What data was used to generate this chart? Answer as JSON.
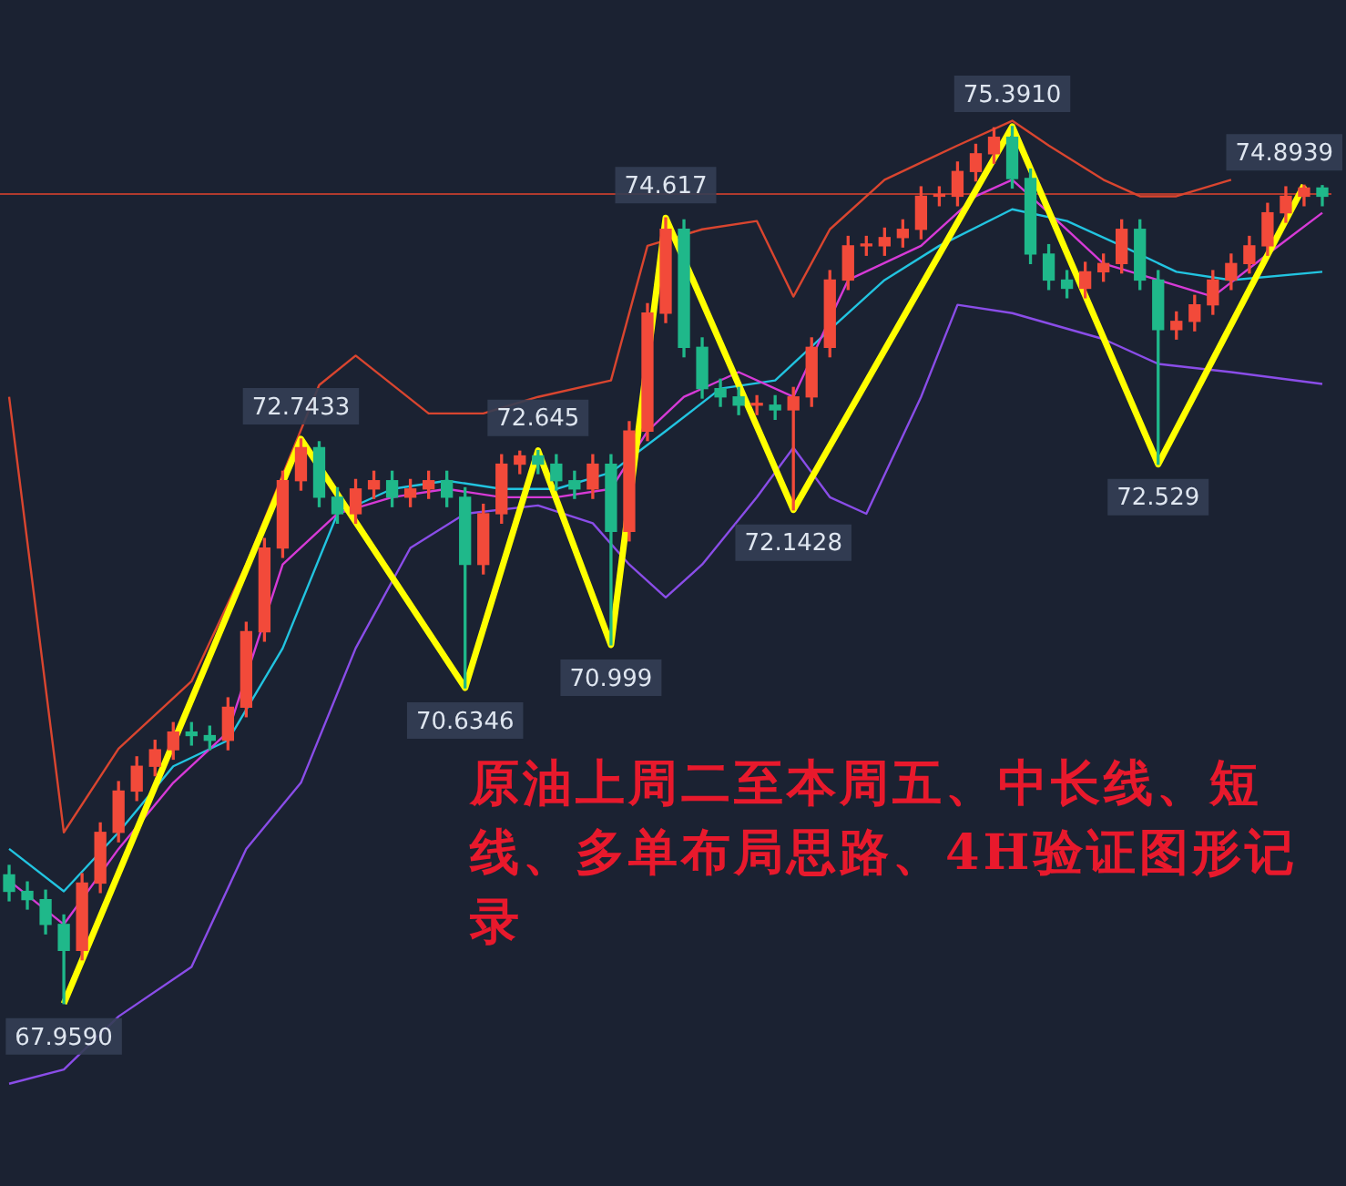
{
  "chart_data": {
    "type": "candlestick",
    "tick_labels": false,
    "categories": [
      null,
      null,
      null,
      null,
      null,
      null,
      null,
      null,
      null,
      null,
      null,
      null,
      null,
      null,
      null,
      null,
      null,
      null,
      null,
      null,
      null,
      null,
      null,
      null,
      null,
      null,
      null,
      null,
      null,
      null,
      null,
      null,
      null,
      null,
      null,
      null,
      null,
      null,
      null,
      null,
      null,
      null,
      null,
      null,
      null,
      null,
      null,
      null,
      null,
      null,
      null,
      null,
      null,
      null,
      null,
      null,
      null,
      null,
      null,
      null,
      null,
      null,
      null,
      null,
      null,
      null,
      null,
      null,
      null,
      null,
      null,
      null,
      null
    ],
    "ohlc": [
      [
        69.05,
        69.13,
        68.83,
        68.91
      ],
      [
        68.91,
        68.99,
        68.76,
        68.84
      ],
      [
        68.84,
        68.92,
        68.55,
        68.63
      ],
      [
        68.63,
        68.71,
        67.959,
        68.41
      ],
      [
        68.41,
        69.06,
        68.33,
        68.98
      ],
      [
        68.98,
        69.49,
        68.9,
        69.41
      ],
      [
        69.41,
        69.84,
        69.33,
        69.76
      ],
      [
        69.76,
        70.05,
        69.68,
        69.97
      ],
      [
        69.97,
        70.19,
        69.89,
        70.11
      ],
      [
        70.11,
        70.34,
        70.03,
        70.26
      ],
      [
        70.26,
        70.34,
        70.15,
        70.23
      ],
      [
        70.23,
        70.31,
        70.11,
        70.19
      ],
      [
        70.19,
        70.55,
        70.11,
        70.47
      ],
      [
        70.47,
        71.19,
        70.39,
        71.11
      ],
      [
        71.11,
        71.9,
        71.03,
        71.82
      ],
      [
        71.82,
        72.47,
        71.74,
        72.39
      ],
      [
        72.39,
        72.7433,
        72.31,
        72.67
      ],
      [
        72.67,
        72.72,
        72.17,
        72.25
      ],
      [
        72.25,
        72.33,
        72.03,
        72.11
      ],
      [
        72.11,
        72.4,
        72.03,
        72.32
      ],
      [
        72.32,
        72.47,
        72.24,
        72.39
      ],
      [
        72.39,
        72.47,
        72.17,
        72.25
      ],
      [
        72.25,
        72.4,
        72.17,
        72.32
      ],
      [
        72.32,
        72.47,
        72.24,
        72.39
      ],
      [
        72.39,
        72.47,
        72.17,
        72.25
      ],
      [
        72.25,
        72.33,
        70.6346,
        71.68
      ],
      [
        71.68,
        72.19,
        71.6,
        72.11
      ],
      [
        72.11,
        72.61,
        72.03,
        72.53
      ],
      [
        72.53,
        72.64,
        72.45,
        72.6
      ],
      [
        72.6,
        72.645,
        72.45,
        72.53
      ],
      [
        72.53,
        72.61,
        72.31,
        72.39
      ],
      [
        72.39,
        72.47,
        72.24,
        72.32
      ],
      [
        72.32,
        72.61,
        72.24,
        72.53
      ],
      [
        72.53,
        72.61,
        70.999,
        71.96
      ],
      [
        71.96,
        72.89,
        71.88,
        72.81
      ],
      [
        72.81,
        73.89,
        72.73,
        73.81
      ],
      [
        73.81,
        74.617,
        73.73,
        74.52
      ],
      [
        74.52,
        74.6,
        73.44,
        73.52
      ],
      [
        73.52,
        73.6,
        73.09,
        73.17
      ],
      [
        73.17,
        73.25,
        73.02,
        73.1
      ],
      [
        73.1,
        73.18,
        72.95,
        73.03
      ],
      [
        73.03,
        73.11,
        72.95,
        73.03
      ],
      [
        73.03,
        73.11,
        72.91,
        72.99
      ],
      [
        72.99,
        73.18,
        72.1428,
        73.1
      ],
      [
        73.1,
        73.6,
        73.02,
        73.52
      ],
      [
        73.52,
        74.17,
        73.44,
        74.09
      ],
      [
        74.09,
        74.46,
        74.01,
        74.38
      ],
      [
        74.38,
        74.46,
        74.3,
        74.38
      ],
      [
        74.38,
        74.53,
        74.3,
        74.45
      ],
      [
        74.45,
        74.6,
        74.37,
        74.52
      ],
      [
        74.52,
        74.88,
        74.44,
        74.8
      ],
      [
        74.8,
        74.88,
        74.72,
        74.8
      ],
      [
        74.8,
        75.09,
        74.72,
        75.01
      ],
      [
        75.01,
        75.24,
        74.93,
        75.16
      ],
      [
        75.16,
        75.38,
        75.08,
        75.3
      ],
      [
        75.3,
        75.391,
        74.87,
        74.95
      ],
      [
        74.95,
        75.03,
        74.23,
        74.31
      ],
      [
        74.31,
        74.39,
        74.01,
        74.09
      ],
      [
        74.09,
        74.17,
        73.94,
        74.02
      ],
      [
        74.02,
        74.24,
        73.94,
        74.16
      ],
      [
        74.16,
        74.31,
        74.08,
        74.23
      ],
      [
        74.23,
        74.6,
        74.15,
        74.52
      ],
      [
        74.52,
        74.6,
        74.01,
        74.09
      ],
      [
        74.09,
        74.17,
        72.529,
        73.67
      ],
      [
        73.67,
        73.82,
        73.59,
        73.74
      ],
      [
        73.74,
        73.96,
        73.66,
        73.88
      ],
      [
        73.88,
        74.17,
        73.8,
        74.09
      ],
      [
        74.09,
        74.31,
        74.01,
        74.23
      ],
      [
        74.23,
        74.46,
        74.15,
        74.38
      ],
      [
        74.38,
        74.74,
        74.3,
        74.66
      ],
      [
        74.66,
        74.88,
        74.58,
        74.8
      ],
      [
        74.8,
        74.8939,
        74.72,
        74.87
      ],
      [
        74.87,
        74.89,
        74.72,
        74.8
      ]
    ],
    "colors": [
      "#1fb88a",
      "#1fb88a",
      "#1fb88a",
      "#1fb88a",
      "#f24a3a",
      "#f24a3a",
      "#f24a3a",
      "#f24a3a",
      "#f24a3a",
      "#f24a3a",
      "#1fb88a",
      "#1fb88a",
      "#f24a3a",
      "#f24a3a",
      "#f24a3a",
      "#f24a3a",
      "#f24a3a",
      "#1fb88a",
      "#1fb88a",
      "#f24a3a",
      "#f24a3a",
      "#1fb88a",
      "#f24a3a",
      "#f24a3a",
      "#1fb88a",
      "#1fb88a",
      "#f24a3a",
      "#f24a3a",
      "#f24a3a",
      "#1fb88a",
      "#1fb88a",
      "#1fb88a",
      "#f24a3a",
      "#1fb88a",
      "#f24a3a",
      "#f24a3a",
      "#f24a3a",
      "#1fb88a",
      "#1fb88a",
      "#1fb88a",
      "#1fb88a",
      "#f24a3a",
      "#1fb88a",
      "#f24a3a",
      "#f24a3a",
      "#f24a3a",
      "#f24a3a",
      "#f24a3a",
      "#f24a3a",
      "#f24a3a",
      "#f24a3a",
      "#f24a3a",
      "#f24a3a",
      "#f24a3a",
      "#f24a3a",
      "#1fb88a",
      "#1fb88a",
      "#1fb88a",
      "#1fb88a",
      "#f24a3a",
      "#f24a3a",
      "#f24a3a",
      "#1fb88a",
      "#1fb88a",
      "#f24a3a",
      "#f24a3a",
      "#f24a3a",
      "#f24a3a",
      "#f24a3a",
      "#f24a3a",
      "#f24a3a",
      "#f24a3a",
      "#1fb88a"
    ],
    "series": [
      {
        "type": "line",
        "color": "#d9452f",
        "values": [
          73.1,
          null,
          null,
          69.41,
          null,
          null,
          70.12,
          null,
          null,
          null,
          70.69,
          null,
          null,
          71.68,
          null,
          null,
          null,
          73.2,
          null,
          73.45,
          null,
          null,
          null,
          72.96,
          null,
          null,
          72.96,
          null,
          null,
          73.1,
          null,
          null,
          null,
          73.24,
          null,
          74.38,
          null,
          null,
          74.52,
          null,
          null,
          74.59,
          null,
          73.95,
          null,
          74.52,
          null,
          null,
          74.94,
          null,
          null,
          null,
          75.23,
          null,
          null,
          75.44,
          null,
          75.23,
          null,
          null,
          74.94,
          null,
          74.8,
          null,
          74.8,
          null,
          null,
          74.94,
          null,
          null,
          null,
          null,
          null
        ]
      },
      {
        "type": "line",
        "color": "#8a4de8",
        "values": [
          67.28,
          null,
          null,
          67.4,
          null,
          null,
          67.85,
          null,
          null,
          null,
          68.27,
          null,
          null,
          69.27,
          null,
          null,
          69.83,
          null,
          null,
          70.97,
          null,
          null,
          71.82,
          null,
          null,
          72.11,
          null,
          null,
          null,
          72.18,
          null,
          null,
          72.03,
          null,
          71.68,
          null,
          71.4,
          null,
          71.68,
          null,
          null,
          72.25,
          null,
          72.67,
          null,
          72.25,
          null,
          72.11,
          null,
          null,
          73.1,
          null,
          73.88,
          null,
          null,
          73.81,
          null,
          null,
          null,
          null,
          73.59,
          null,
          null,
          73.38,
          null,
          null,
          null,
          73.31,
          null,
          null,
          null,
          null,
          73.21
        ]
      },
      {
        "type": "line",
        "color": "#d63ad6",
        "values": [
          69.0,
          null,
          null,
          68.63,
          null,
          null,
          69.27,
          null,
          null,
          69.83,
          null,
          null,
          70.26,
          null,
          null,
          71.68,
          null,
          null,
          72.11,
          null,
          null,
          72.25,
          null,
          null,
          72.32,
          null,
          null,
          72.25,
          null,
          null,
          72.25,
          null,
          null,
          72.32,
          null,
          72.81,
          null,
          73.1,
          null,
          null,
          73.31,
          null,
          null,
          73.1,
          null,
          null,
          74.09,
          null,
          null,
          null,
          74.38,
          null,
          null,
          74.8,
          null,
          74.94,
          null,
          74.66,
          null,
          null,
          74.23,
          null,
          null,
          74.09,
          null,
          null,
          73.95,
          null,
          null,
          74.31,
          null,
          null,
          74.66
        ]
      },
      {
        "type": "line",
        "color": "#22c4e0",
        "values": [
          69.27,
          null,
          null,
          68.91,
          null,
          null,
          69.41,
          null,
          null,
          69.97,
          null,
          null,
          70.19,
          null,
          null,
          70.97,
          null,
          null,
          72.11,
          null,
          null,
          72.32,
          null,
          null,
          72.39,
          null,
          null,
          72.32,
          null,
          null,
          72.32,
          null,
          null,
          72.46,
          null,
          null,
          72.81,
          null,
          null,
          73.17,
          null,
          null,
          73.24,
          null,
          null,
          73.67,
          null,
          null,
          74.09,
          null,
          null,
          74.38,
          null,
          null,
          null,
          74.69,
          null,
          null,
          74.59,
          null,
          null,
          74.38,
          null,
          null,
          74.16,
          null,
          null,
          74.09,
          null,
          null,
          null,
          null,
          74.16
        ]
      },
      {
        "type": "line",
        "color": "#ffff00",
        "values": [
          null,
          null,
          null,
          67.959,
          null,
          null,
          null,
          null,
          null,
          null,
          null,
          null,
          null,
          null,
          null,
          null,
          72.7433,
          null,
          null,
          null,
          null,
          null,
          null,
          null,
          null,
          70.6346,
          null,
          null,
          null,
          72.645,
          null,
          null,
          null,
          70.999,
          null,
          null,
          74.617,
          null,
          null,
          null,
          null,
          null,
          null,
          72.1428,
          null,
          null,
          null,
          null,
          null,
          null,
          null,
          null,
          null,
          null,
          null,
          75.391,
          null,
          null,
          null,
          null,
          null,
          null,
          null,
          72.529,
          null,
          null,
          null,
          null,
          null,
          null,
          null,
          74.8939,
          null
        ]
      }
    ],
    "ref_lines": [
      {
        "axis": "y",
        "value": 74.82,
        "color": "#b03a2e"
      }
    ],
    "annotations": [
      {
        "text": "67.9590",
        "y": 67.959
      },
      {
        "text": "72.7433",
        "y": 72.7433
      },
      {
        "text": "70.6346",
        "y": 70.6346
      },
      {
        "text": "72.645",
        "y": 72.645
      },
      {
        "text": "70.999",
        "y": 70.999
      },
      {
        "text": "74.617",
        "y": 74.617
      },
      {
        "text": "72.1428",
        "y": 72.1428
      },
      {
        "text": "75.3910",
        "y": 75.391
      },
      {
        "text": "72.529",
        "y": 72.529
      },
      {
        "text": "74.8939",
        "y": 74.8939
      },
      "原油上周二至本周五、中长线、短线、多单布局思路、4H验证图形记录"
    ]
  }
}
